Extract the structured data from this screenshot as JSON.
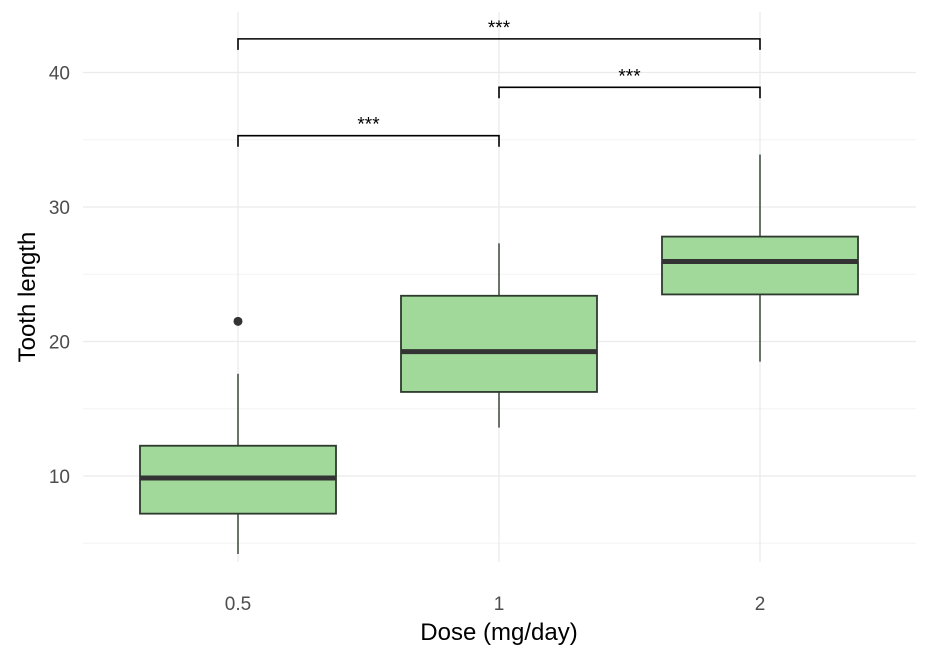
{
  "chart_data": {
    "type": "boxplot",
    "xlabel": "Dose (mg/day)",
    "ylabel": "Tooth length",
    "categories": [
      "0.5",
      "1",
      "2"
    ],
    "ylim": [
      2.5,
      36.5
    ],
    "y_ticks": [
      10,
      20,
      30,
      40
    ],
    "grid": true,
    "legend": "none",
    "colors": {
      "fill": "#a1d99b",
      "stroke": "#2d3a2d",
      "median": "#333333",
      "grid_major": "#ebebeb",
      "grid_minor": "#f3f3f3"
    },
    "boxes": [
      {
        "category": "0.5",
        "whisker_low": 4.2,
        "q1": 7.2,
        "median": 9.85,
        "q3": 12.25,
        "whisker_high": 17.6,
        "outliers": [
          21.5
        ]
      },
      {
        "category": "1",
        "whisker_low": 13.6,
        "q1": 16.25,
        "median": 19.25,
        "q3": 23.4,
        "whisker_high": 27.3,
        "outliers": []
      },
      {
        "category": "2",
        "whisker_low": 18.5,
        "q1": 23.5,
        "median": 25.95,
        "q3": 27.8,
        "whisker_high": 33.9,
        "outliers": []
      }
    ],
    "comparisons": [
      {
        "from": "0.5",
        "to": "1",
        "y": 35.3,
        "label": "***"
      },
      {
        "from": "1",
        "to": "2",
        "y": 38.9,
        "label": "***"
      },
      {
        "from": "0.5",
        "to": "2",
        "y": 42.5,
        "label": "***"
      }
    ]
  }
}
